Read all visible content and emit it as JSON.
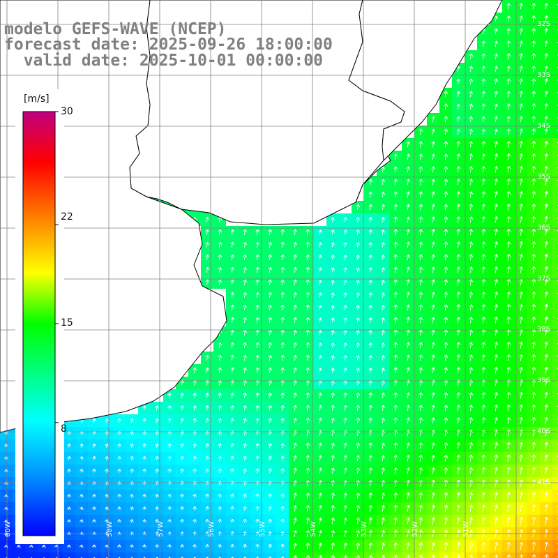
{
  "title": {
    "line1": "modelo GEFS-WAVE (NCEP)",
    "line2": "forecast date: 2025-09-26 18:00:00",
    "line3": "  valid date: 2025-10-01 00:00:00"
  },
  "colorbar": {
    "unit": "[m/s]",
    "min": 0,
    "max": 30,
    "ticks": [
      "30",
      "22",
      "15",
      "8"
    ],
    "tick_values": [
      30,
      22,
      15,
      8
    ],
    "colors": [
      "#0000ff",
      "#0090ff",
      "#00ffff",
      "#00ff00",
      "#ffff00",
      "#ff8000",
      "#ff0000",
      "#c00080"
    ]
  },
  "map": {
    "lon_labels": [
      "60W",
      "59W",
      "58W",
      "57W",
      "56W",
      "55W",
      "54W",
      "53W",
      "52W",
      "51W"
    ],
    "lat_labels": [
      "32S",
      "33S",
      "34S",
      "35S",
      "36S",
      "37S",
      "38S",
      "39S",
      "40S",
      "41S"
    ],
    "field": "wind speed and direction",
    "grid": true
  }
}
